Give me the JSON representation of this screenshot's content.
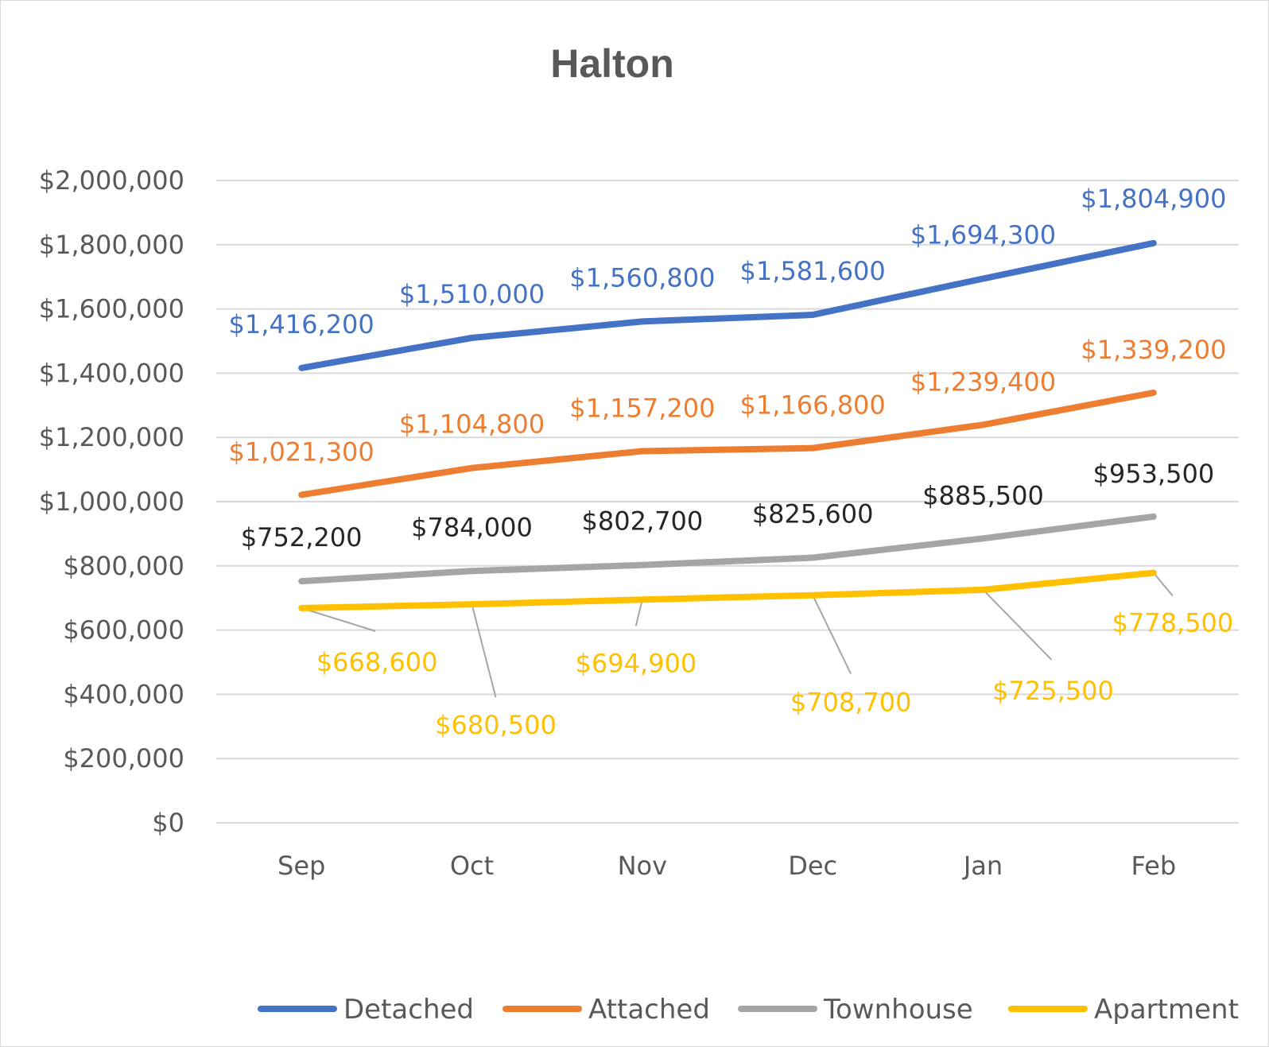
{
  "chart_data": {
    "type": "line",
    "title": "Halton",
    "xlabel": "",
    "ylabel": "",
    "categories": [
      "Sep",
      "Oct",
      "Nov",
      "Dec",
      "Jan",
      "Feb"
    ],
    "ylim": [
      0,
      2000000
    ],
    "yticks": [
      0,
      200000,
      400000,
      600000,
      800000,
      1000000,
      1200000,
      1400000,
      1600000,
      1800000,
      2000000
    ],
    "ytick_labels": [
      "$0",
      "$200,000",
      "$400,000",
      "$600,000",
      "$800,000",
      "$1,000,000",
      "$1,200,000",
      "$1,400,000",
      "$1,600,000",
      "$1,800,000",
      "$2,000,000"
    ],
    "grid": true,
    "legend_position": "bottom",
    "series": [
      {
        "name": "Detached",
        "color": "#4472C4",
        "label_color": "#4472C4",
        "values": [
          1416200,
          1510000,
          1560800,
          1581600,
          1694300,
          1804900
        ],
        "labels": [
          "$1,416,200",
          "$1,510,000",
          "$1,560,800",
          "$1,581,600",
          "$1,694,300",
          "$1,804,900"
        ]
      },
      {
        "name": "Attached",
        "color": "#ED7D31",
        "label_color": "#ED7D31",
        "values": [
          1021300,
          1104800,
          1157200,
          1166800,
          1239400,
          1339200
        ],
        "labels": [
          "$1,021,300",
          "$1,104,800",
          "$1,157,200",
          "$1,166,800",
          "$1,239,400",
          "$1,339,200"
        ]
      },
      {
        "name": "Townhouse",
        "color": "#A5A5A5",
        "label_color": "#262626",
        "values": [
          752200,
          784000,
          802700,
          825600,
          885500,
          953500
        ],
        "labels": [
          "$752,200",
          "$784,000",
          "$802,700",
          "$825,600",
          "$885,500",
          "$953,500"
        ]
      },
      {
        "name": "Apartment",
        "color": "#FFC000",
        "label_color": "#FFC000",
        "values": [
          668600,
          680500,
          694900,
          708700,
          725500,
          778500
        ],
        "labels": [
          "$668,600",
          "$680,500",
          "$694,900",
          "$708,700",
          "$725,500",
          "$778,500"
        ]
      }
    ]
  }
}
